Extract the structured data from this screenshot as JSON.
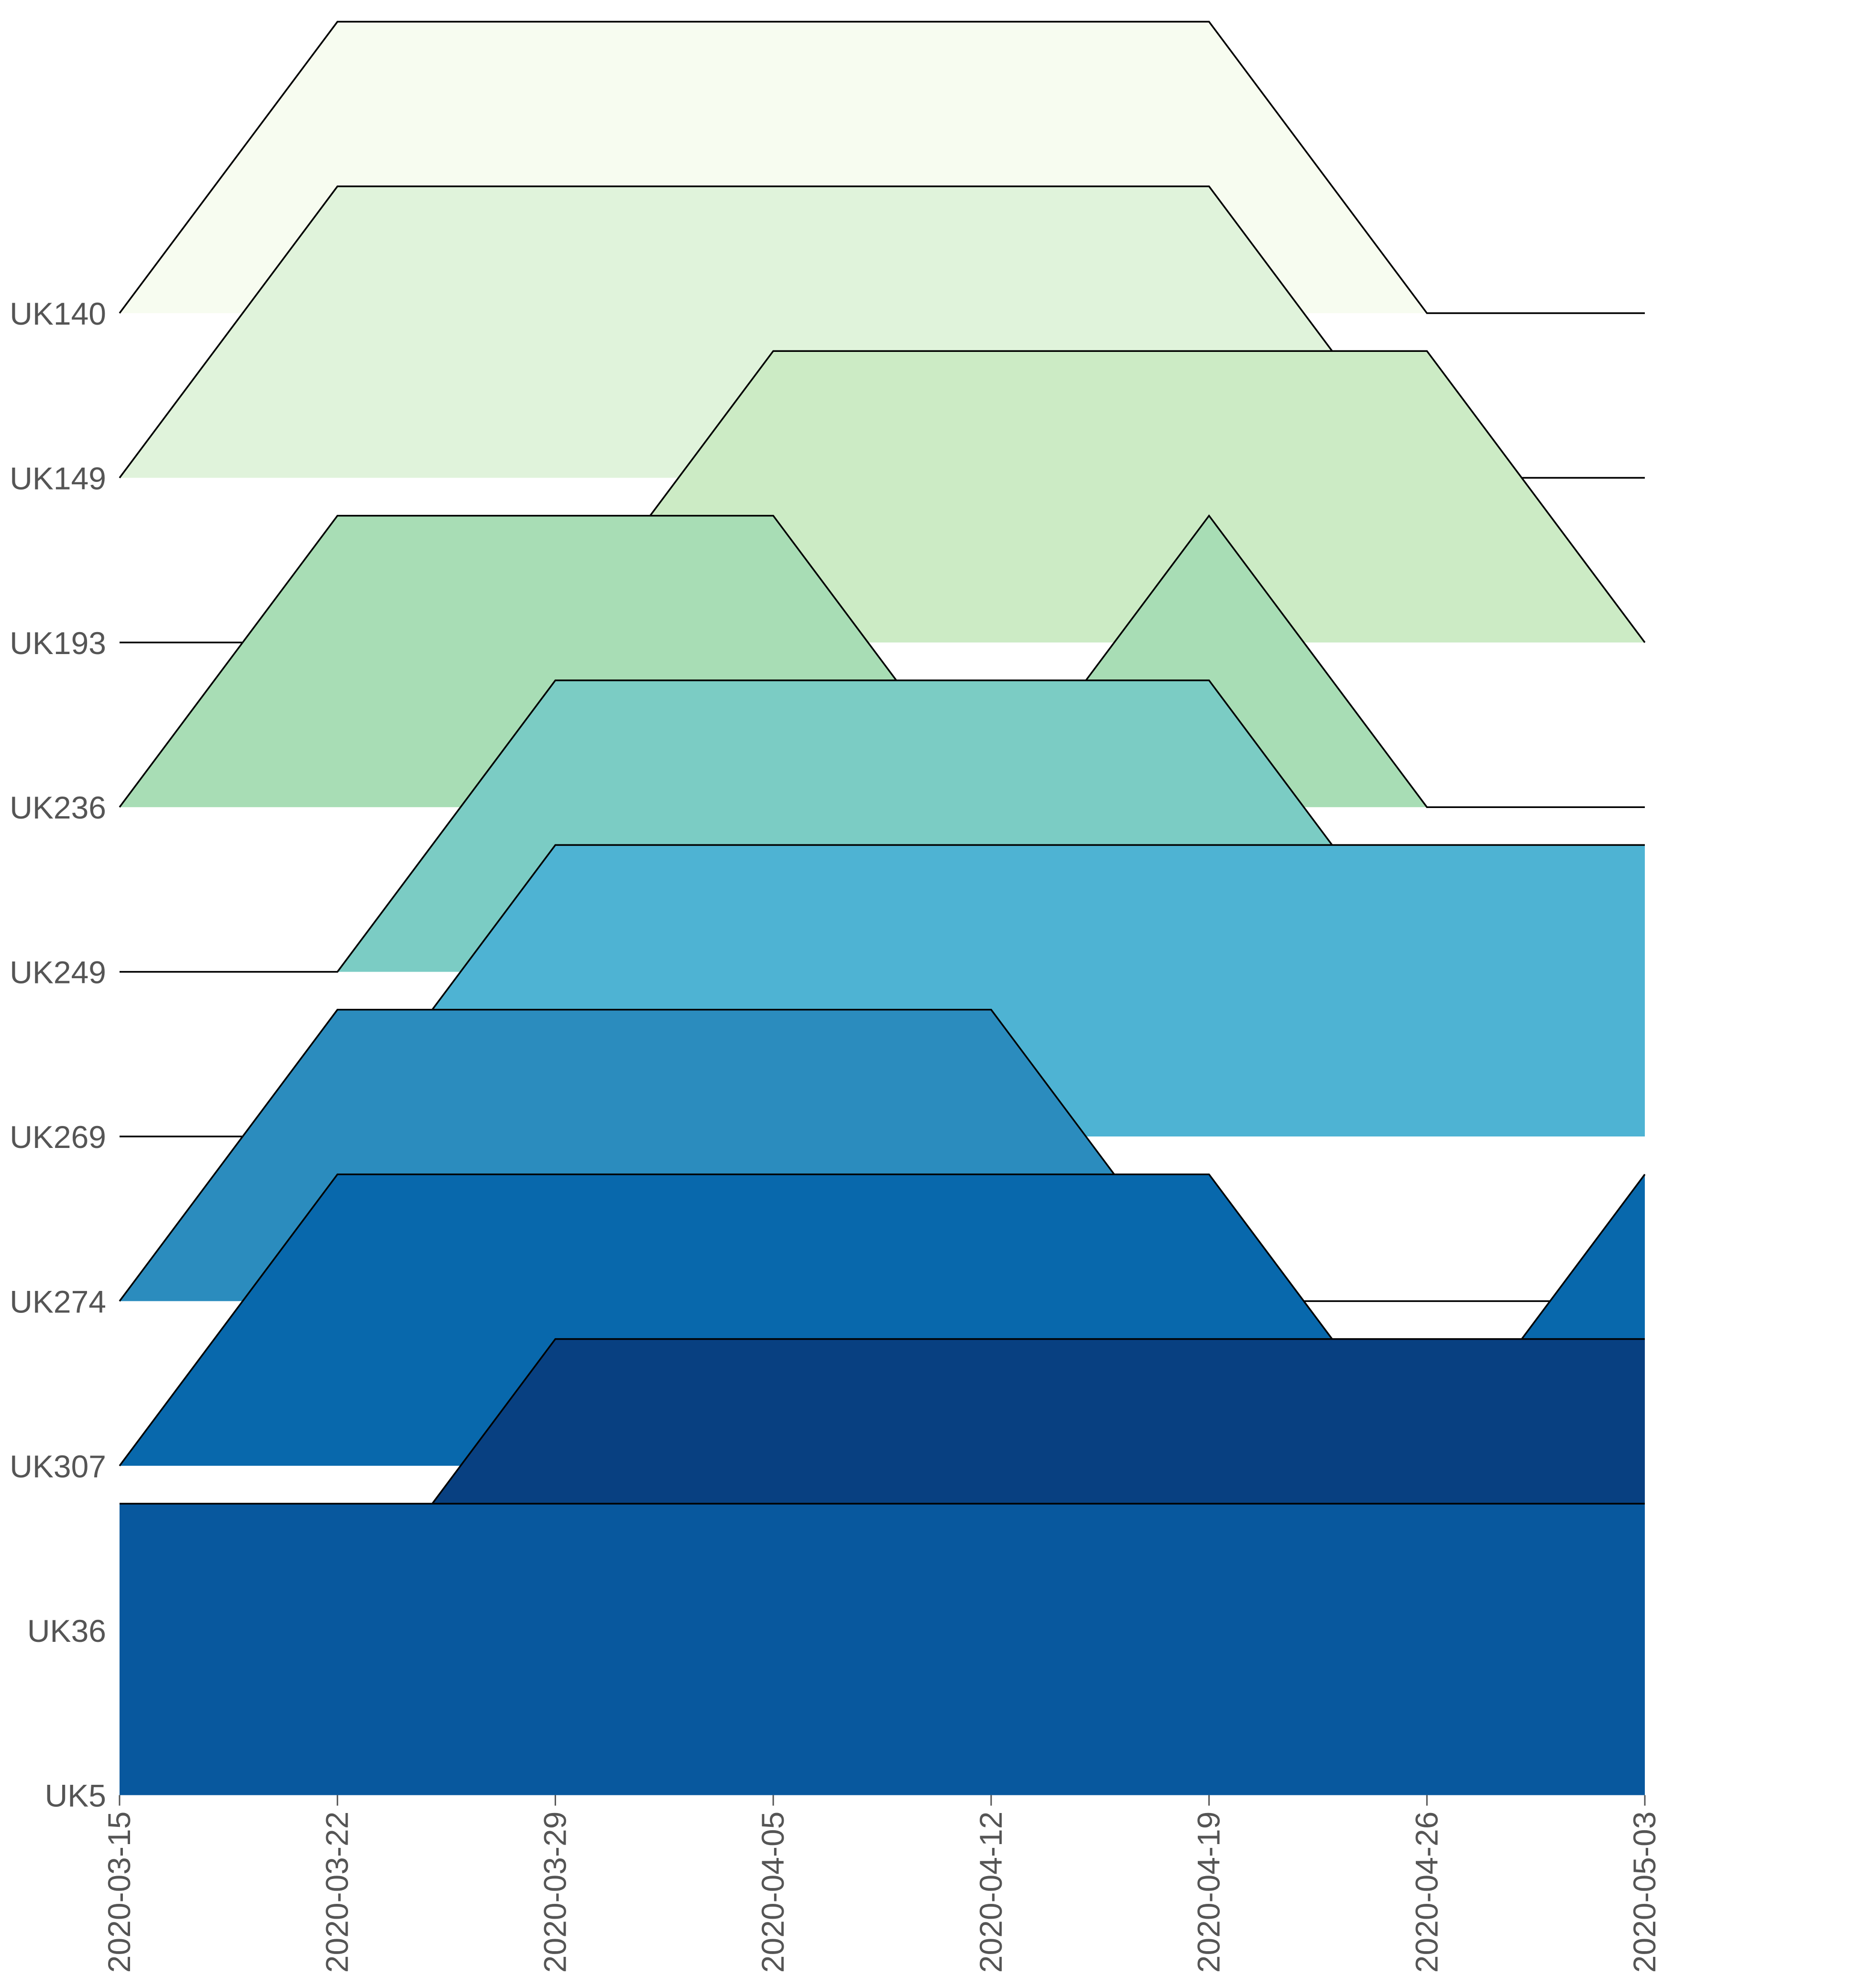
{
  "chart_data": {
    "type": "area",
    "subtype": "ridgeline",
    "title": "",
    "xlabel": "",
    "ylabel": "",
    "x": [
      "2020-03-15",
      "2020-03-22",
      "2020-03-29",
      "2020-04-05",
      "2020-04-12",
      "2020-04-19",
      "2020-04-26",
      "2020-05-03"
    ],
    "x_ticks": [
      "2020-03-15",
      "2020-03-22",
      "2020-03-29",
      "2020-04-05",
      "2020-04-12",
      "2020-04-19",
      "2020-04-26",
      "2020-05-03"
    ],
    "grid": false,
    "legend": "none",
    "ridge_height_in_rows": 1.77,
    "series": [
      {
        "label": "UK140",
        "values": [
          0,
          1,
          1,
          1,
          1,
          1,
          0,
          0
        ],
        "color": "#f7fcf0"
      },
      {
        "label": "UK149",
        "values": [
          0,
          1,
          1,
          1,
          1,
          1,
          0,
          0
        ],
        "color": "#e0f3db"
      },
      {
        "label": "UK193",
        "values": [
          0,
          0,
          0,
          1,
          1,
          1,
          1,
          0
        ],
        "color": "#ccebc5"
      },
      {
        "label": "UK236",
        "values": [
          0,
          1,
          1,
          1,
          0,
          1,
          0,
          0
        ],
        "color": "#a8ddb5"
      },
      {
        "label": "UK249",
        "values": [
          0,
          0,
          1,
          1,
          1,
          1,
          0,
          0
        ],
        "color": "#7bccc4"
      },
      {
        "label": "UK269",
        "values": [
          0,
          0,
          1,
          1,
          1,
          1,
          1,
          1
        ],
        "color": "#4eb3d3"
      },
      {
        "label": "UK274",
        "values": [
          0,
          1,
          1,
          1,
          1,
          0,
          0,
          0
        ],
        "color": "#2b8cbe"
      },
      {
        "label": "UK307",
        "values": [
          0,
          1,
          1,
          1,
          1,
          1,
          0,
          1
        ],
        "color": "#0868ac"
      },
      {
        "label": "UK36",
        "values": [
          0,
          0,
          1,
          1,
          1,
          1,
          1,
          1
        ],
        "color": "#084081"
      },
      {
        "label": "UK5",
        "values": [
          1,
          1,
          1,
          1,
          1,
          1,
          1,
          1
        ],
        "color": "#08589e"
      }
    ]
  }
}
